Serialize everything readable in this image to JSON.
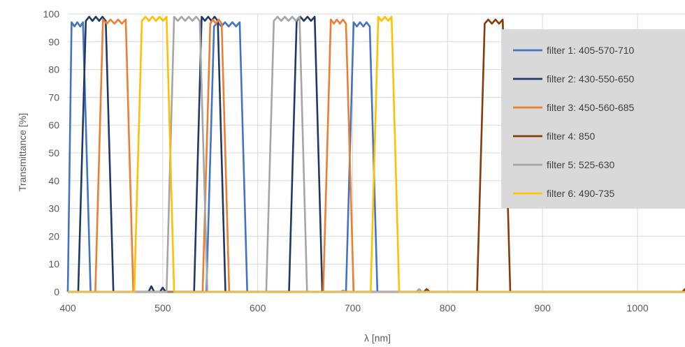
{
  "chart_data": {
    "type": "line",
    "title": "",
    "xlabel": "λ [nm]",
    "ylabel": "Transmittance [%]",
    "xlim": [
      400,
      1050
    ],
    "ylim": [
      0,
      100
    ],
    "x_ticks": [
      400,
      500,
      600,
      700,
      800,
      900,
      1000
    ],
    "y_ticks": [
      0,
      10,
      20,
      30,
      40,
      50,
      60,
      70,
      80,
      90,
      100
    ],
    "grid": "both",
    "legend_position": "right",
    "series": [
      {
        "name": "filter 1: 405-570-710",
        "color": "#4472C4",
        "bands": [
          [
            400,
            420
          ],
          [
            550,
            585
          ],
          [
            697,
            722
          ]
        ],
        "top": 97,
        "baseline_points": []
      },
      {
        "name": "filter 2: 430-550-650",
        "color": "#203864",
        "bands": [
          [
            415,
            444
          ],
          [
            537,
            562
          ],
          [
            637,
            664
          ]
        ],
        "top": 99,
        "baseline_points": [
          [
            488,
            2
          ],
          [
            500,
            1.5
          ]
        ]
      },
      {
        "name": "filter 3: 450-560-685",
        "color": "#ED7D31",
        "bands": [
          [
            433,
            465
          ],
          [
            546,
            566
          ],
          [
            673,
            697
          ]
        ],
        "top": 98,
        "baseline_points": []
      },
      {
        "name": "filter 4: 850",
        "color": "#843C0C",
        "bands": [
          [
            835,
            862
          ]
        ],
        "top": 98,
        "baseline_points": [
          [
            778,
            1
          ],
          [
            1050,
            1
          ]
        ]
      },
      {
        "name": "filter 5: 525-630",
        "color": "#A5A5A5",
        "bands": [
          [
            508,
            543
          ],
          [
            613,
            648
          ]
        ],
        "top": 99,
        "baseline_points": [
          [
            690,
            0.5
          ],
          [
            770,
            1
          ]
        ]
      },
      {
        "name": "filter 6: 490-735",
        "color": "#FFC000",
        "bands": [
          [
            474,
            508
          ],
          [
            723,
            745
          ]
        ],
        "top": 99,
        "baseline_points": []
      }
    ]
  }
}
